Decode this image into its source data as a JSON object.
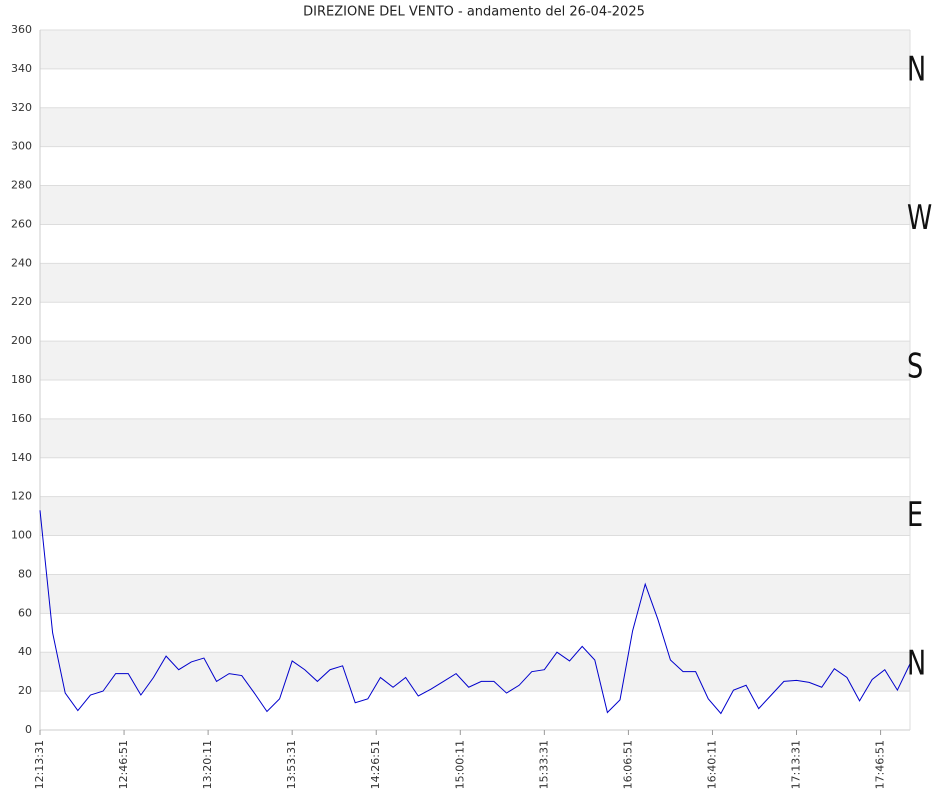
{
  "chart_data": {
    "type": "line",
    "title": "DIREZIONE DEL VENTO - andamento del 26-04-2025",
    "x": [
      "12:13:31",
      "12:18:31",
      "12:23:31",
      "12:28:31",
      "12:33:31",
      "12:38:31",
      "12:43:31",
      "12:48:31",
      "12:53:31",
      "12:58:31",
      "13:03:31",
      "13:08:31",
      "13:13:31",
      "13:18:31",
      "13:23:31",
      "13:28:31",
      "13:33:31",
      "13:38:31",
      "13:43:31",
      "13:48:31",
      "13:53:31",
      "13:58:31",
      "14:03:31",
      "14:08:31",
      "14:13:31",
      "14:18:31",
      "14:23:31",
      "14:28:31",
      "14:33:31",
      "14:38:31",
      "14:43:31",
      "14:48:31",
      "14:53:31",
      "14:58:31",
      "15:03:31",
      "15:08:31",
      "15:13:31",
      "15:18:31",
      "15:23:31",
      "15:28:31",
      "15:33:31",
      "15:38:31",
      "15:43:31",
      "15:48:31",
      "15:53:31",
      "15:58:31",
      "16:03:31",
      "16:08:31",
      "16:13:31",
      "16:18:31",
      "16:23:31",
      "16:28:31",
      "16:33:31",
      "16:38:31",
      "16:43:31",
      "16:48:31",
      "16:53:31",
      "16:58:31",
      "17:03:31",
      "17:08:31",
      "17:13:31",
      "17:18:31",
      "17:23:31",
      "17:28:31",
      "17:33:31",
      "17:38:31",
      "17:43:31",
      "17:48:31",
      "17:53:31",
      "17:58:31"
    ],
    "series": [
      {
        "color": "#0000cc",
        "values": [
          113,
          50,
          19,
          10,
          18,
          20,
          29,
          29,
          18,
          27,
          38,
          31,
          35,
          37,
          25,
          29,
          28,
          19,
          9.5,
          16,
          35.5,
          31,
          25,
          31,
          33,
          14,
          16,
          27,
          22,
          27,
          17.5,
          21,
          25,
          29,
          22,
          25,
          25,
          19,
          23,
          30,
          31,
          40,
          35.5,
          43,
          36,
          9,
          15.5,
          51,
          75,
          57,
          36,
          30,
          30,
          16,
          8.5,
          20.5,
          23,
          11,
          18,
          25,
          25.5,
          24.5,
          22,
          31.5,
          27,
          15,
          26,
          31,
          20.5,
          34
        ]
      }
    ],
    "xlim": [
      "12:13:31",
      "17:58:31"
    ],
    "xticks": [
      "12:13:31",
      "12:46:51",
      "13:20:11",
      "13:53:31",
      "14:26:51",
      "15:00:11",
      "15:33:31",
      "16:06:51",
      "16:40:11",
      "17:13:31",
      "17:46:51"
    ],
    "ylim": [
      0,
      360
    ],
    "yticks": [
      0,
      20,
      40,
      60,
      80,
      100,
      120,
      140,
      160,
      180,
      200,
      220,
      240,
      260,
      280,
      300,
      320,
      340,
      360
    ],
    "grid": true,
    "compass_labels": [
      "N",
      "W",
      "S",
      "E",
      "N"
    ]
  }
}
